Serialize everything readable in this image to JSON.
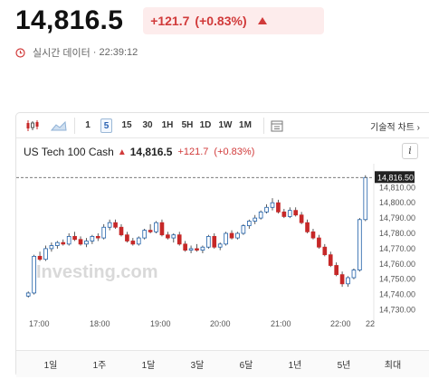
{
  "quote": {
    "last": "14,816.5",
    "change": "+121.7",
    "change_pct": "(+0.83%)",
    "realtime_label": "실시간 데이터",
    "separator": "·",
    "time": "22:39:12"
  },
  "toolbar": {
    "candle_icon": "candlestick-icon",
    "area_icon": "mountain-chart-icon",
    "intervals": [
      "1",
      "5",
      "15",
      "30",
      "1H",
      "5H",
      "1D",
      "1W",
      "1M"
    ],
    "active_interval": "5",
    "calendar_icon": "calendar-icon",
    "advanced_chart_label": "기술적 차트 ›"
  },
  "chart_header": {
    "instrument": "US Tech 100 Cash",
    "last": "14,816.5",
    "change": "+121.7",
    "change_pct": "(+0.83%)",
    "info_label": "i"
  },
  "watermark": "Investing.com",
  "colors": {
    "up": "#1e5fa8",
    "down": "#c62828",
    "change": "#d13a3a",
    "dashed": "#666666",
    "price_tag": "#222222"
  },
  "chart_data": {
    "type": "candlestick",
    "x_ticks": [
      "17:00",
      "18:00",
      "19:00",
      "20:00",
      "21:00",
      "22:00",
      "22"
    ],
    "y_ticks": [
      "14,730.00",
      "14,740.00",
      "14,750.00",
      "14,760.00",
      "14,770.00",
      "14,780.00",
      "14,790.00",
      "14,800.00",
      "14,810.00"
    ],
    "ylim": [
      14725,
      14822
    ],
    "last_price_label": "14,816.50",
    "last_price": 14816.5,
    "candles": [
      {
        "o": 14739,
        "h": 14742,
        "l": 14738,
        "c": 14741
      },
      {
        "o": 14741,
        "h": 14766,
        "l": 14740,
        "c": 14765
      },
      {
        "o": 14765,
        "h": 14768,
        "l": 14762,
        "c": 14763
      },
      {
        "o": 14763,
        "h": 14772,
        "l": 14762,
        "c": 14770
      },
      {
        "o": 14770,
        "h": 14774,
        "l": 14768,
        "c": 14772
      },
      {
        "o": 14772,
        "h": 14775,
        "l": 14770,
        "c": 14774
      },
      {
        "o": 14774,
        "h": 14776,
        "l": 14772,
        "c": 14773
      },
      {
        "o": 14773,
        "h": 14780,
        "l": 14772,
        "c": 14778
      },
      {
        "o": 14778,
        "h": 14781,
        "l": 14775,
        "c": 14776
      },
      {
        "o": 14776,
        "h": 14778,
        "l": 14772,
        "c": 14773
      },
      {
        "o": 14773,
        "h": 14777,
        "l": 14771,
        "c": 14775
      },
      {
        "o": 14775,
        "h": 14779,
        "l": 14773,
        "c": 14778
      },
      {
        "o": 14778,
        "h": 14780,
        "l": 14775,
        "c": 14777
      },
      {
        "o": 14777,
        "h": 14786,
        "l": 14776,
        "c": 14784
      },
      {
        "o": 14784,
        "h": 14789,
        "l": 14782,
        "c": 14787
      },
      {
        "o": 14787,
        "h": 14789,
        "l": 14783,
        "c": 14784
      },
      {
        "o": 14784,
        "h": 14786,
        "l": 14778,
        "c": 14779
      },
      {
        "o": 14779,
        "h": 14781,
        "l": 14774,
        "c": 14775
      },
      {
        "o": 14775,
        "h": 14777,
        "l": 14772,
        "c": 14773
      },
      {
        "o": 14773,
        "h": 14778,
        "l": 14772,
        "c": 14777
      },
      {
        "o": 14777,
        "h": 14783,
        "l": 14776,
        "c": 14782
      },
      {
        "o": 14782,
        "h": 14786,
        "l": 14780,
        "c": 14781
      },
      {
        "o": 14781,
        "h": 14788,
        "l": 14780,
        "c": 14787
      },
      {
        "o": 14787,
        "h": 14789,
        "l": 14778,
        "c": 14779
      },
      {
        "o": 14779,
        "h": 14781,
        "l": 14776,
        "c": 14777
      },
      {
        "o": 14777,
        "h": 14780,
        "l": 14774,
        "c": 14779
      },
      {
        "o": 14779,
        "h": 14781,
        "l": 14772,
        "c": 14773
      },
      {
        "o": 14773,
        "h": 14775,
        "l": 14768,
        "c": 14769
      },
      {
        "o": 14769,
        "h": 14772,
        "l": 14767,
        "c": 14770
      },
      {
        "o": 14770,
        "h": 14773,
        "l": 14768,
        "c": 14769
      },
      {
        "o": 14769,
        "h": 14772,
        "l": 14767,
        "c": 14771
      },
      {
        "o": 14771,
        "h": 14779,
        "l": 14770,
        "c": 14778
      },
      {
        "o": 14778,
        "h": 14780,
        "l": 14770,
        "c": 14771
      },
      {
        "o": 14771,
        "h": 14774,
        "l": 14769,
        "c": 14773
      },
      {
        "o": 14773,
        "h": 14781,
        "l": 14772,
        "c": 14780
      },
      {
        "o": 14780,
        "h": 14782,
        "l": 14776,
        "c": 14777
      },
      {
        "o": 14777,
        "h": 14781,
        "l": 14776,
        "c": 14780
      },
      {
        "o": 14780,
        "h": 14786,
        "l": 14779,
        "c": 14785
      },
      {
        "o": 14785,
        "h": 14789,
        "l": 14783,
        "c": 14788
      },
      {
        "o": 14788,
        "h": 14792,
        "l": 14786,
        "c": 14790
      },
      {
        "o": 14790,
        "h": 14795,
        "l": 14789,
        "c": 14794
      },
      {
        "o": 14794,
        "h": 14799,
        "l": 14793,
        "c": 14797
      },
      {
        "o": 14797,
        "h": 14803,
        "l": 14795,
        "c": 14800
      },
      {
        "o": 14800,
        "h": 14802,
        "l": 14793,
        "c": 14794
      },
      {
        "o": 14794,
        "h": 14796,
        "l": 14790,
        "c": 14791
      },
      {
        "o": 14791,
        "h": 14797,
        "l": 14790,
        "c": 14795
      },
      {
        "o": 14795,
        "h": 14797,
        "l": 14791,
        "c": 14792
      },
      {
        "o": 14792,
        "h": 14794,
        "l": 14786,
        "c": 14787
      },
      {
        "o": 14787,
        "h": 14789,
        "l": 14780,
        "c": 14781
      },
      {
        "o": 14781,
        "h": 14783,
        "l": 14776,
        "c": 14777
      },
      {
        "o": 14777,
        "h": 14779,
        "l": 14770,
        "c": 14771
      },
      {
        "o": 14771,
        "h": 14773,
        "l": 14765,
        "c": 14766
      },
      {
        "o": 14766,
        "h": 14768,
        "l": 14758,
        "c": 14759
      },
      {
        "o": 14759,
        "h": 14761,
        "l": 14752,
        "c": 14753
      },
      {
        "o": 14753,
        "h": 14755,
        "l": 14745,
        "c": 14747
      },
      {
        "o": 14747,
        "h": 14752,
        "l": 14745,
        "c": 14751
      },
      {
        "o": 14751,
        "h": 14757,
        "l": 14750,
        "c": 14756
      },
      {
        "o": 14756,
        "h": 14790,
        "l": 14755,
        "c": 14789
      },
      {
        "o": 14789,
        "h": 14818,
        "l": 14788,
        "c": 14816.5
      }
    ]
  },
  "periods": [
    "1일",
    "1주",
    "1달",
    "3달",
    "6달",
    "1년",
    "5년",
    "최대"
  ]
}
